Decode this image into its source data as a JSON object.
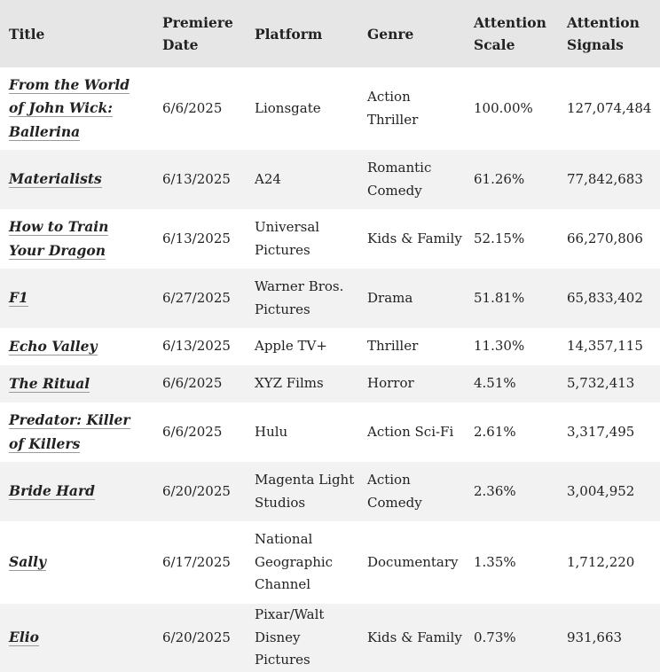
{
  "table": {
    "headers": {
      "title": "Title",
      "premiere_date": "Premiere Date",
      "platform": "Platform",
      "genre": "Genre",
      "attention_scale": "Attention Scale",
      "attention_signals": "Attention Signals"
    },
    "rows": [
      {
        "title": "From the World of John Wick: Ballerina",
        "premiere_date": "6/6/2025",
        "platform": "Lionsgate",
        "genre": "Action Thriller",
        "attention_scale": "100.00%",
        "attention_signals": "127,074,484"
      },
      {
        "title": "Materialists",
        "premiere_date": "6/13/2025",
        "platform": "A24",
        "genre": "Romantic Comedy",
        "attention_scale": "61.26%",
        "attention_signals": "77,842,683"
      },
      {
        "title": "How to Train Your Dragon",
        "premiere_date": "6/13/2025",
        "platform": "Universal Pictures",
        "genre": "Kids & Family",
        "attention_scale": "52.15%",
        "attention_signals": "66,270,806"
      },
      {
        "title": "F1",
        "premiere_date": "6/27/2025",
        "platform": "Warner Bros. Pictures",
        "genre": "Drama",
        "attention_scale": "51.81%",
        "attention_signals": "65,833,402"
      },
      {
        "title": "Echo Valley",
        "premiere_date": "6/13/2025",
        "platform": "Apple TV+",
        "genre": "Thriller",
        "attention_scale": "11.30%",
        "attention_signals": "14,357,115"
      },
      {
        "title": "The Ritual",
        "premiere_date": "6/6/2025",
        "platform": "XYZ Films",
        "genre": "Horror",
        "attention_scale": "4.51%",
        "attention_signals": "5,732,413"
      },
      {
        "title": "Predator: Killer of Killers",
        "premiere_date": "6/6/2025",
        "platform": "Hulu",
        "genre": "Action Sci-Fi",
        "attention_scale": "2.61%",
        "attention_signals": "3,317,495"
      },
      {
        "title": "Bride Hard",
        "premiere_date": "6/20/2025",
        "platform": "Magenta Light Studios",
        "genre": "Action Comedy",
        "attention_scale": "2.36%",
        "attention_signals": "3,004,952"
      },
      {
        "title": "Sally",
        "premiere_date": "6/17/2025",
        "platform": "National Geographic Channel",
        "genre": "Documentary",
        "attention_scale": "1.35%",
        "attention_signals": "1,712,220"
      },
      {
        "title": "Elio",
        "premiere_date": "6/20/2025",
        "platform": "Pixar/Walt Disney Pictures",
        "genre": "Kids & Family",
        "attention_scale": "0.73%",
        "attention_signals": "931,663"
      }
    ]
  }
}
